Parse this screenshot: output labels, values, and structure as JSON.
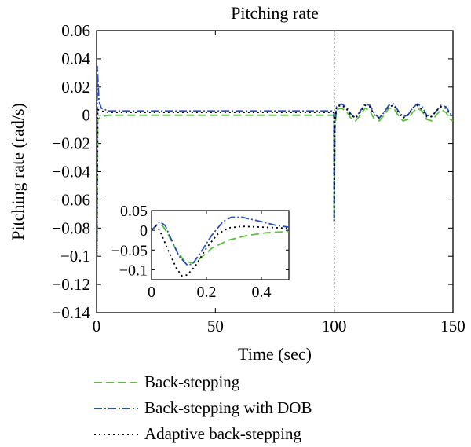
{
  "chart_data": {
    "type": "line",
    "title": "Pitching rate",
    "xlabel": "Time (sec)",
    "ylabel": "Pitching rate (rad/s)",
    "xlim": [
      0,
      150
    ],
    "ylim": [
      -0.14,
      0.06
    ],
    "xticks": [
      "0",
      "50",
      "100",
      "150"
    ],
    "yticks": [
      "0.06",
      "0.04",
      "0.02",
      "0",
      "−0.02",
      "−0.04",
      "−0.06",
      "−0.08",
      "−0.1",
      "−0.12",
      "−0.14"
    ],
    "annotation": {
      "type": "vertical-line",
      "x": 100,
      "style": "dotted",
      "color": "#000000"
    },
    "series": [
      {
        "name": "Back-stepping",
        "color": "#5cbf3f",
        "dash": "dashed",
        "points": [
          [
            0,
            0.01
          ],
          [
            0.15,
            -0.09
          ],
          [
            0.5,
            -0.003
          ],
          [
            2,
            -0.001
          ],
          [
            5,
            0
          ],
          [
            99.9,
            0
          ],
          [
            100,
            -0.075
          ],
          [
            100.3,
            -0.01
          ],
          [
            101,
            0.004
          ],
          [
            103,
            0.005
          ],
          [
            105,
            0.003
          ],
          [
            107,
            -0.002
          ],
          [
            109,
            -0.004
          ],
          [
            111,
            0
          ],
          [
            113,
            0.005
          ],
          [
            115,
            0.003
          ],
          [
            117,
            -0.003
          ],
          [
            119,
            -0.004
          ],
          [
            121,
            0
          ],
          [
            123,
            0.005
          ],
          [
            125,
            0.005
          ],
          [
            127,
            0
          ],
          [
            129,
            -0.004
          ],
          [
            131,
            -0.003
          ],
          [
            133,
            0.002
          ],
          [
            135,
            0.005
          ],
          [
            137,
            0.003
          ],
          [
            139,
            -0.003
          ],
          [
            141,
            -0.004
          ],
          [
            143,
            0
          ],
          [
            145,
            0.004
          ],
          [
            147,
            0.002
          ],
          [
            149,
            -0.003
          ],
          [
            150,
            -0.004
          ]
        ]
      },
      {
        "name": "Back-stepping with DOB",
        "color": "#2c4fb8",
        "dash": "dashdot",
        "points": [
          [
            0,
            0.01
          ],
          [
            0.12,
            -0.09
          ],
          [
            0.3,
            0.035
          ],
          [
            1,
            0.01
          ],
          [
            2,
            0.005
          ],
          [
            5,
            0.003
          ],
          [
            99.9,
            0.003
          ],
          [
            100,
            -0.075
          ],
          [
            100.3,
            -0.005
          ],
          [
            101,
            0.006
          ],
          [
            103,
            0.008
          ],
          [
            105,
            0.006
          ],
          [
            107,
            0.001
          ],
          [
            109,
            -0.002
          ],
          [
            111,
            0.003
          ],
          [
            113,
            0.008
          ],
          [
            115,
            0.007
          ],
          [
            117,
            0.001
          ],
          [
            119,
            -0.002
          ],
          [
            121,
            0.002
          ],
          [
            123,
            0.007
          ],
          [
            125,
            0.008
          ],
          [
            127,
            0.003
          ],
          [
            129,
            -0.001
          ],
          [
            131,
            0
          ],
          [
            133,
            0.005
          ],
          [
            135,
            0.008
          ],
          [
            137,
            0.006
          ],
          [
            139,
            0
          ],
          [
            141,
            -0.001
          ],
          [
            143,
            0.003
          ],
          [
            145,
            0.007
          ],
          [
            147,
            0.006
          ],
          [
            149,
            0.001
          ],
          [
            150,
            -0.001
          ]
        ]
      },
      {
        "name": "Adaptive back-stepping",
        "color": "#000000",
        "dash": "dotted",
        "points": [
          [
            0,
            0.01
          ],
          [
            0.15,
            -0.1
          ],
          [
            0.5,
            0.004
          ],
          [
            2,
            0.003
          ],
          [
            5,
            0.002
          ],
          [
            99.9,
            0.002
          ],
          [
            100,
            -0.075
          ],
          [
            100.3,
            -0.004
          ],
          [
            101,
            0.006
          ],
          [
            103,
            0.007
          ],
          [
            105,
            0.005
          ],
          [
            107,
            0
          ],
          [
            109,
            -0.002
          ],
          [
            111,
            0.002
          ],
          [
            113,
            0.007
          ],
          [
            115,
            0.006
          ],
          [
            117,
            0
          ],
          [
            119,
            -0.002
          ],
          [
            121,
            0.002
          ],
          [
            123,
            0.006
          ],
          [
            125,
            0.007
          ],
          [
            127,
            0.002
          ],
          [
            129,
            -0.002
          ],
          [
            131,
            0
          ],
          [
            133,
            0.005
          ],
          [
            135,
            0.007
          ],
          [
            137,
            0.004
          ],
          [
            139,
            -0.001
          ],
          [
            141,
            -0.001
          ],
          [
            143,
            0.003
          ],
          [
            145,
            0.006
          ],
          [
            147,
            0.005
          ],
          [
            149,
            0
          ],
          [
            150,
            -0.001
          ]
        ]
      }
    ],
    "inset": {
      "xlim": [
        0,
        0.5
      ],
      "ylim": [
        -0.125,
        0.05
      ],
      "xticks": [
        "0",
        "0.2",
        "0.4"
      ],
      "yticks": [
        "0.05",
        "0",
        "−0.05",
        "−0.1"
      ],
      "series": [
        {
          "name": "Back-stepping",
          "points": [
            [
              0,
              0
            ],
            [
              0.02,
              0.013
            ],
            [
              0.04,
              0.012
            ],
            [
              0.06,
              -0.01
            ],
            [
              0.09,
              -0.05
            ],
            [
              0.12,
              -0.078
            ],
            [
              0.15,
              -0.083
            ],
            [
              0.18,
              -0.07
            ],
            [
              0.22,
              -0.045
            ],
            [
              0.28,
              -0.025
            ],
            [
              0.35,
              -0.013
            ],
            [
              0.42,
              -0.006
            ],
            [
              0.5,
              -0.003
            ]
          ]
        },
        {
          "name": "Back-stepping with DOB",
          "points": [
            [
              0,
              0
            ],
            [
              0.03,
              0.022
            ],
            [
              0.05,
              0.012
            ],
            [
              0.07,
              -0.02
            ],
            [
              0.1,
              -0.065
            ],
            [
              0.13,
              -0.088
            ],
            [
              0.15,
              -0.085
            ],
            [
              0.18,
              -0.055
            ],
            [
              0.22,
              -0.012
            ],
            [
              0.26,
              0.022
            ],
            [
              0.29,
              0.033
            ],
            [
              0.33,
              0.033
            ],
            [
              0.4,
              0.022
            ],
            [
              0.45,
              0.013
            ],
            [
              0.5,
              0.008
            ]
          ]
        },
        {
          "name": "Adaptive back-stepping",
          "points": [
            [
              0,
              0
            ],
            [
              0.015,
              0.01
            ],
            [
              0.03,
              0
            ],
            [
              0.06,
              -0.05
            ],
            [
              0.09,
              -0.095
            ],
            [
              0.11,
              -0.115
            ],
            [
              0.13,
              -0.113
            ],
            [
              0.16,
              -0.09
            ],
            [
              0.2,
              -0.045
            ],
            [
              0.24,
              -0.01
            ],
            [
              0.28,
              0.006
            ],
            [
              0.33,
              0.01
            ],
            [
              0.4,
              0.008
            ],
            [
              0.5,
              0.005
            ]
          ]
        }
      ]
    }
  }
}
